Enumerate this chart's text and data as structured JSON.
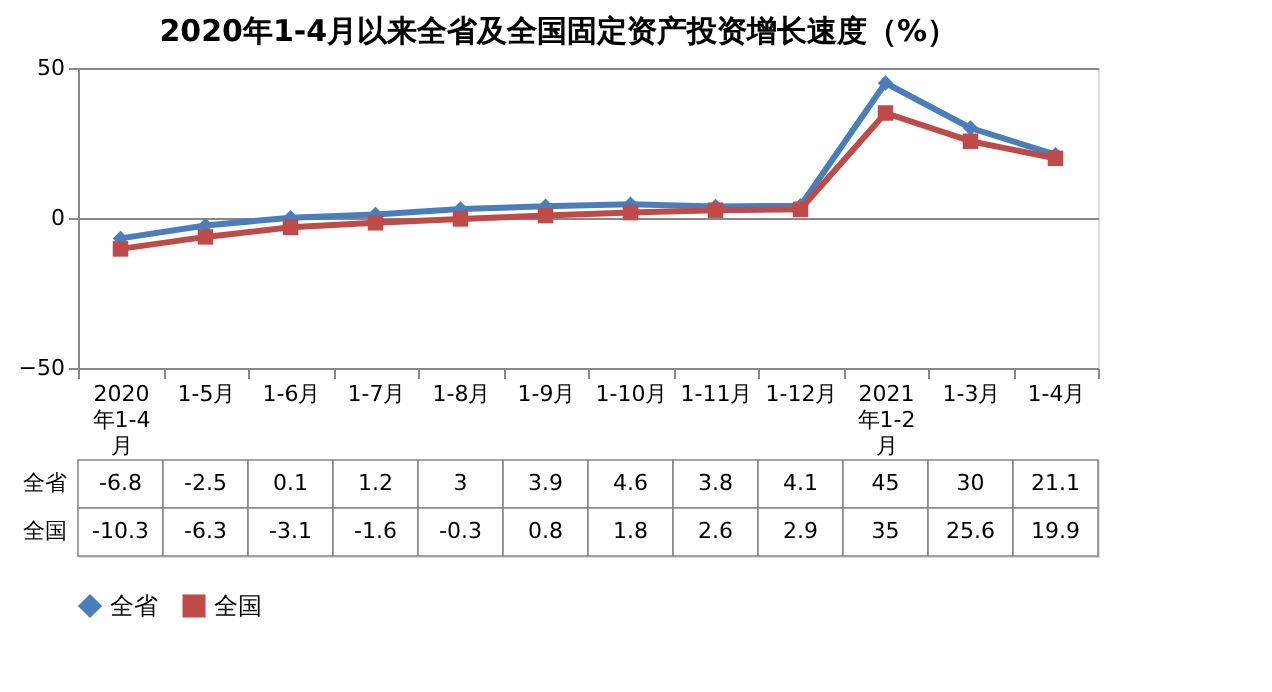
{
  "chart_data": {
    "type": "line",
    "title": "2020年1-4月以来全省及全国固定资产投资增长速度（%）",
    "categories": [
      "2020年1-4月",
      "1-5月",
      "1-6月",
      "1-7月",
      "1-8月",
      "1-9月",
      "1-10月",
      "1-11月",
      "1-12月",
      "2021年1-2月",
      "1-3月",
      "1-4月"
    ],
    "series": [
      {
        "name": "全省",
        "color": "#4a7ebb",
        "marker": "diamond",
        "values": [
          -6.8,
          -2.5,
          0.1,
          1.2,
          3,
          3.9,
          4.6,
          3.8,
          4.1,
          45,
          30,
          21.1
        ]
      },
      {
        "name": "全国",
        "color": "#be4b48",
        "marker": "square",
        "values": [
          -10.3,
          -6.3,
          -3.1,
          -1.6,
          -0.3,
          0.8,
          1.8,
          2.6,
          2.9,
          35,
          25.6,
          19.9
        ]
      }
    ],
    "ylim": [
      -50,
      50
    ],
    "yticks": [
      -50,
      0,
      50
    ],
    "grid": "y",
    "legend": "bottom",
    "data_labels": true,
    "line_style": "solid"
  }
}
